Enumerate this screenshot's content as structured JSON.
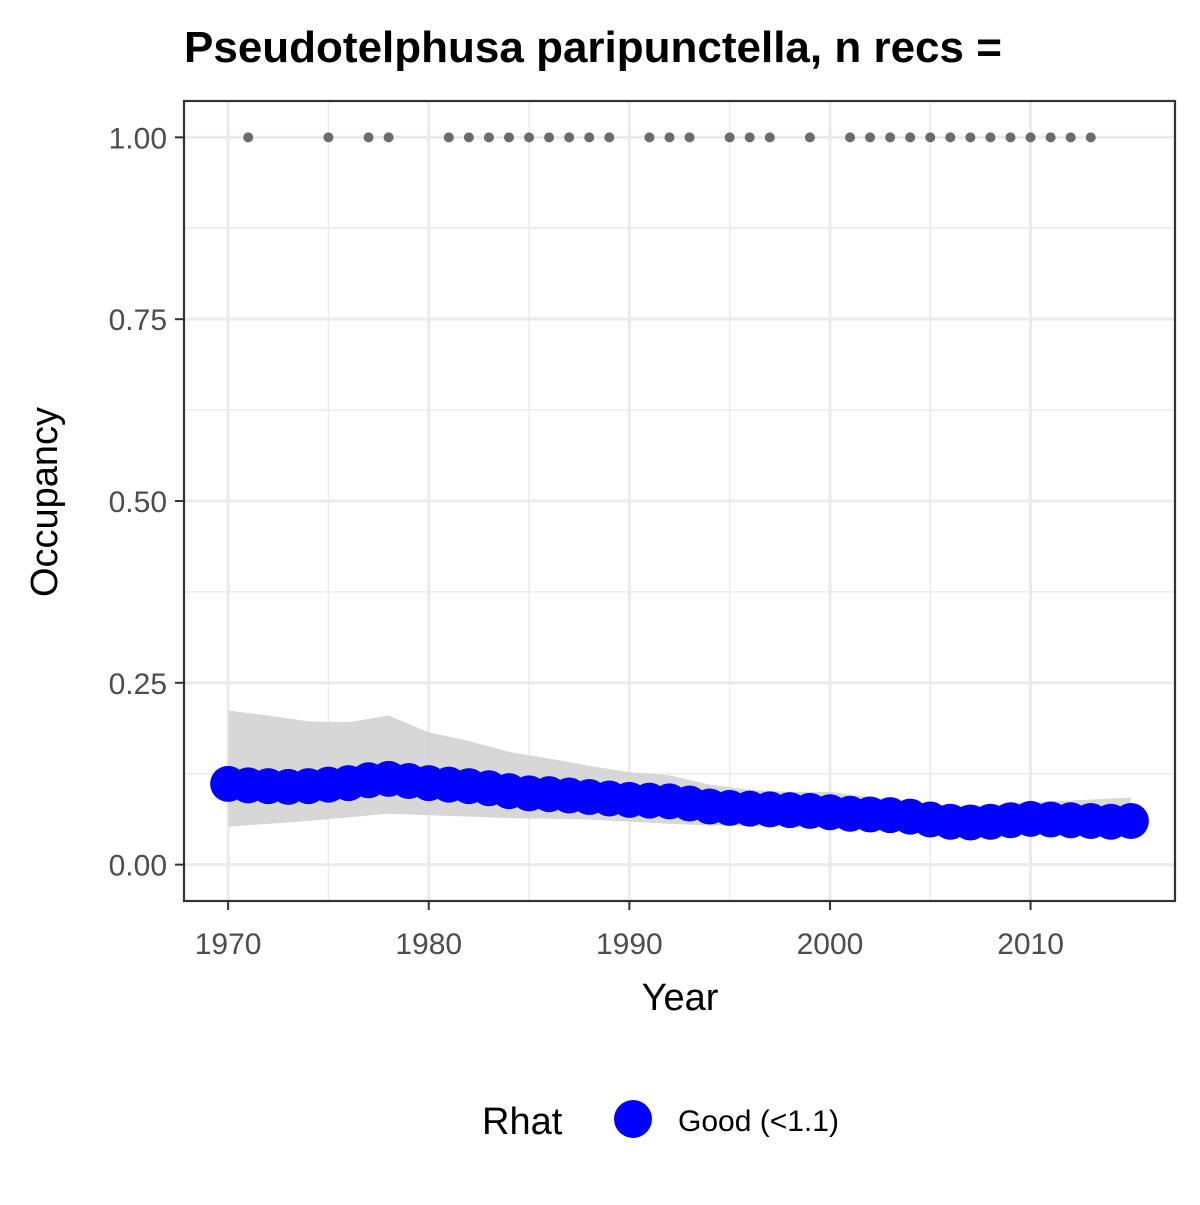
{
  "chart_data": {
    "type": "line",
    "title": "Pseudotelphusa paripunctella, n recs = ",
    "xlabel": "Year",
    "ylabel": "Occupancy",
    "xlim": [
      1967.8,
      2017.2
    ],
    "ylim": [
      -0.05,
      1.05
    ],
    "x_ticks": [
      1970,
      1980,
      1990,
      2000,
      2010
    ],
    "y_ticks": [
      0,
      0.25,
      0.5,
      0.75,
      1
    ],
    "y_tick_labels": [
      "0.00",
      "0.25",
      "0.50",
      "0.75",
      "1.00"
    ],
    "grid": true,
    "legend": {
      "title": "Rhat",
      "position": "bottom",
      "entries": [
        {
          "label": "Good (<1.1)",
          "color": "#0000ff"
        }
      ]
    },
    "series": [
      {
        "name": "Good (<1.1)",
        "color": "#0000ff",
        "x": [
          1970,
          1971,
          1972,
          1973,
          1974,
          1975,
          1976,
          1977,
          1978,
          1979,
          1980,
          1981,
          1982,
          1983,
          1984,
          1985,
          1986,
          1987,
          1988,
          1989,
          1990,
          1991,
          1992,
          1993,
          1994,
          1995,
          1996,
          1997,
          1998,
          1999,
          2000,
          2001,
          2002,
          2003,
          2004,
          2005,
          2006,
          2007,
          2008,
          2009,
          2010,
          2011,
          2012,
          2013,
          2014,
          2015
        ],
        "values": [
          0.111,
          0.109,
          0.108,
          0.107,
          0.108,
          0.11,
          0.112,
          0.116,
          0.118,
          0.115,
          0.112,
          0.11,
          0.108,
          0.105,
          0.101,
          0.098,
          0.097,
          0.095,
          0.093,
          0.091,
          0.089,
          0.088,
          0.087,
          0.084,
          0.08,
          0.078,
          0.077,
          0.076,
          0.075,
          0.074,
          0.072,
          0.07,
          0.069,
          0.068,
          0.066,
          0.062,
          0.059,
          0.058,
          0.059,
          0.061,
          0.063,
          0.062,
          0.061,
          0.06,
          0.059,
          0.06
        ]
      }
    ],
    "ribbon": {
      "color": "#d3d3d3",
      "x": [
        1970,
        1972,
        1974,
        1976,
        1978,
        1980,
        1982,
        1984,
        1986,
        1988,
        1990,
        1992,
        1994,
        1996,
        1998,
        2000,
        2002,
        2004,
        2006,
        2008,
        2010,
        2012,
        2014,
        2015
      ],
      "lower": [
        0.052,
        0.056,
        0.06,
        0.065,
        0.07,
        0.068,
        0.066,
        0.064,
        0.063,
        0.062,
        0.059,
        0.056,
        0.054,
        0.053,
        0.052,
        0.05,
        0.048,
        0.045,
        0.042,
        0.04,
        0.042,
        0.043,
        0.042,
        0.041
      ],
      "upper": [
        0.212,
        0.205,
        0.197,
        0.196,
        0.205,
        0.182,
        0.17,
        0.155,
        0.146,
        0.136,
        0.127,
        0.123,
        0.11,
        0.103,
        0.1,
        0.1,
        0.093,
        0.086,
        0.081,
        0.082,
        0.086,
        0.088,
        0.091,
        0.092
      ]
    },
    "records": {
      "color": "#6b6b6b",
      "y": 1.0,
      "x": [
        1971,
        1975,
        1977,
        1978,
        1981,
        1982,
        1983,
        1984,
        1985,
        1986,
        1987,
        1988,
        1989,
        1991,
        1992,
        1993,
        1995,
        1996,
        1997,
        1999,
        2001,
        2002,
        2003,
        2004,
        2005,
        2006,
        2007,
        2008,
        2009,
        2010,
        2011,
        2012,
        2013
      ]
    }
  }
}
